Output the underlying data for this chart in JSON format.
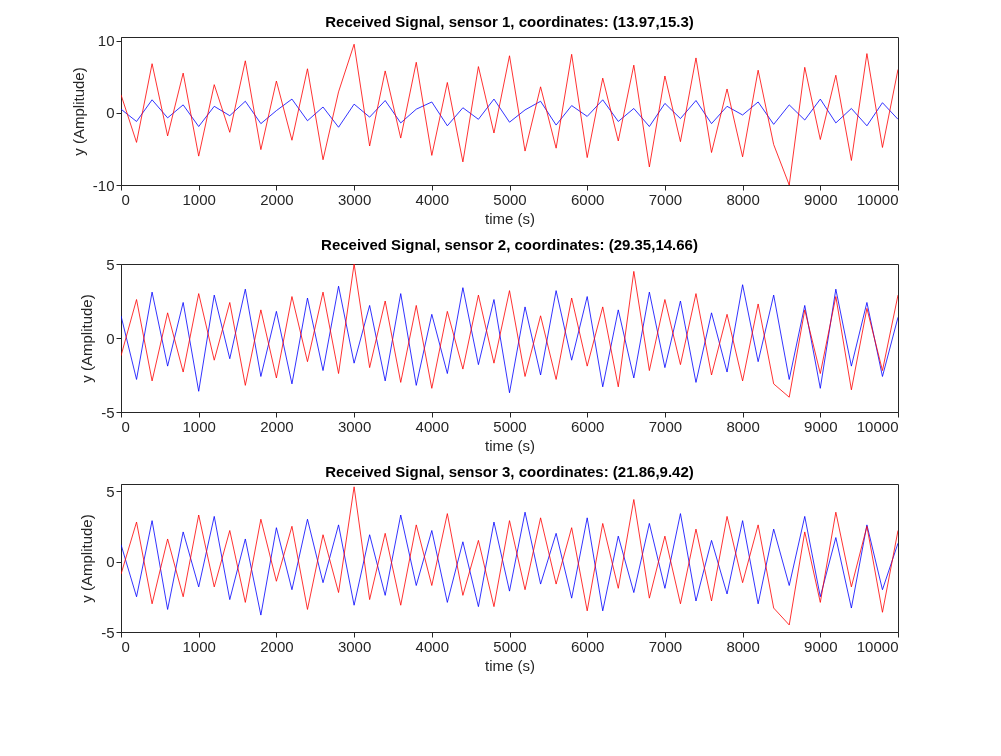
{
  "chart_data": [
    {
      "type": "line",
      "title": "Received Signal, sensor 1, coordinates: (13.97,15.3)",
      "xlabel": "time (s)",
      "ylabel": "y (Amplitude)",
      "x": [
        0,
        200,
        400,
        600,
        800,
        1000,
        1200,
        1400,
        1600,
        1800,
        2000,
        2200,
        2400,
        2600,
        2800,
        3000,
        3200,
        3400,
        3600,
        3800,
        4000,
        4200,
        4400,
        4600,
        4800,
        5000,
        5200,
        5400,
        5600,
        5800,
        6000,
        6200,
        6400,
        6600,
        6800,
        7000,
        7200,
        7400,
        7600,
        7800,
        8000,
        8200,
        8400,
        8600,
        8800,
        9000,
        9200,
        9400,
        9600,
        9800,
        10000
      ],
      "series": [
        {
          "color": "#0000ff",
          "values": [
            0.5,
            -1.2,
            1.8,
            -0.7,
            1.1,
            -1.9,
            0.9,
            -0.4,
            1.6,
            -1.5,
            0.3,
            1.9,
            -1.1,
            0.8,
            -2.0,
            1.2,
            -0.6,
            1.7,
            -1.4,
            0.5,
            1.5,
            -1.8,
            0.7,
            -0.9,
            1.9,
            -1.3,
            0.4,
            1.6,
            -1.7,
            1.0,
            -0.5,
            1.8,
            -1.2,
            0.6,
            -1.9,
            1.3,
            -0.8,
            1.7,
            -1.5,
            0.9,
            -0.3,
            1.5,
            -1.6,
            1.1,
            -1.0,
            1.9,
            -1.4,
            0.6,
            -1.8,
            1.4,
            -0.9
          ]
        },
        {
          "color": "#ff0000",
          "values": [
            2.5,
            -4.1,
            6.8,
            -3.2,
            5.5,
            -6.0,
            3.9,
            -2.7,
            7.2,
            -5.1,
            4.4,
            -3.8,
            6.1,
            -6.5,
            2.9,
            9.5,
            -4.6,
            5.8,
            -3.5,
            7.0,
            -5.9,
            4.2,
            -6.8,
            6.4,
            -2.8,
            7.9,
            -5.3,
            3.6,
            -4.9,
            8.1,
            -6.2,
            4.8,
            -3.9,
            6.6,
            -7.5,
            5.1,
            -4.0,
            7.6,
            -5.5,
            3.3,
            -6.1,
            5.9,
            -4.4,
            -10.0,
            6.3,
            -3.7,
            5.2,
            -6.6,
            8.2,
            -4.8,
            6.0
          ]
        }
      ],
      "xlim": [
        0,
        10000
      ],
      "xticks": [
        0,
        1000,
        2000,
        3000,
        4000,
        5000,
        6000,
        7000,
        8000,
        9000,
        10000
      ],
      "ylim": [
        -10,
        10.5
      ],
      "yticks": [
        -10,
        0,
        10
      ],
      "grid": false
    },
    {
      "type": "line",
      "title": "Received Signal, sensor 2, coordinates: (29.35,14.66)",
      "xlabel": "time (s)",
      "ylabel": "y (Amplitude)",
      "x": [
        0,
        200,
        400,
        600,
        800,
        1000,
        1200,
        1400,
        1600,
        1800,
        2000,
        2200,
        2400,
        2600,
        2800,
        3000,
        3200,
        3400,
        3600,
        3800,
        4000,
        4200,
        4400,
        4600,
        4800,
        5000,
        5200,
        5400,
        5600,
        5800,
        6000,
        6200,
        6400,
        6600,
        6800,
        7000,
        7200,
        7400,
        7600,
        7800,
        8000,
        8200,
        8400,
        8600,
        8800,
        9000,
        9200,
        9400,
        9600,
        9800,
        10000
      ],
      "series": [
        {
          "color": "#0000ff",
          "values": [
            1.5,
            -2.8,
            3.1,
            -1.9,
            2.4,
            -3.6,
            2.9,
            -1.4,
            3.3,
            -2.6,
            1.8,
            -3.1,
            2.7,
            -2.2,
            3.5,
            -1.7,
            2.2,
            -2.9,
            3.0,
            -3.2,
            1.6,
            -2.4,
            3.4,
            -1.8,
            2.6,
            -3.7,
            2.1,
            -2.5,
            3.2,
            -1.5,
            2.8,
            -3.3,
            1.9,
            -2.7,
            3.1,
            -2.0,
            2.5,
            -3.0,
            1.7,
            -2.3,
            3.6,
            -1.6,
            2.9,
            -2.8,
            2.2,
            -3.4,
            3.3,
            -1.9,
            2.4,
            -2.6,
            1.4
          ]
        },
        {
          "color": "#ff0000",
          "values": [
            -1.2,
            2.6,
            -2.9,
            1.7,
            -2.3,
            3.0,
            -1.5,
            2.4,
            -3.2,
            1.9,
            -2.7,
            2.8,
            -1.6,
            3.1,
            -2.4,
            5.0,
            -2.0,
            2.5,
            -3.0,
            2.2,
            -3.4,
            1.8,
            -2.1,
            2.9,
            -1.7,
            3.2,
            -2.6,
            1.5,
            -2.8,
            2.7,
            -1.9,
            2.1,
            -3.3,
            4.5,
            -2.2,
            2.6,
            -1.8,
            3.0,
            -2.5,
            1.6,
            -2.9,
            2.3,
            -3.1,
            -4.0,
            1.9,
            -2.4,
            2.8,
            -3.5,
            2.0,
            -2.2,
            2.9
          ]
        }
      ],
      "xlim": [
        0,
        10000
      ],
      "xticks": [
        0,
        1000,
        2000,
        3000,
        4000,
        5000,
        6000,
        7000,
        8000,
        9000,
        10000
      ],
      "ylim": [
        -5,
        5
      ],
      "yticks": [
        -5,
        0,
        5
      ],
      "grid": false
    },
    {
      "type": "line",
      "title": "Received Signal, sensor 3, coordinates: (21.86,9.42)",
      "xlabel": "time (s)",
      "ylabel": "y (Amplitude)",
      "x": [
        0,
        200,
        400,
        600,
        800,
        1000,
        1200,
        1400,
        1600,
        1800,
        2000,
        2200,
        2400,
        2600,
        2800,
        3000,
        3200,
        3400,
        3600,
        3800,
        4000,
        4200,
        4400,
        4600,
        4800,
        5000,
        5200,
        5400,
        5600,
        5800,
        6000,
        6200,
        6400,
        6600,
        6800,
        7000,
        7200,
        7400,
        7600,
        7800,
        8000,
        8200,
        8400,
        8600,
        8800,
        9000,
        9200,
        9400,
        9600,
        9800,
        10000
      ],
      "series": [
        {
          "color": "#0000ff",
          "values": [
            1.2,
            -2.5,
            2.9,
            -3.4,
            2.1,
            -1.8,
            3.2,
            -2.7,
            1.6,
            -3.8,
            2.4,
            -2.0,
            3.0,
            -1.5,
            2.6,
            -3.1,
            1.9,
            -2.4,
            3.3,
            -1.7,
            2.2,
            -2.9,
            1.4,
            -3.2,
            2.8,
            -2.1,
            3.5,
            -1.6,
            2.0,
            -2.6,
            3.1,
            -3.5,
            1.8,
            -2.2,
            2.7,
            -1.9,
            3.4,
            -2.8,
            1.5,
            -2.3,
            2.9,
            -3.0,
            2.3,
            -1.7,
            3.2,
            -2.5,
            1.7,
            -3.3,
            2.6,
            -2.0,
            1.3
          ]
        },
        {
          "color": "#ff0000",
          "values": [
            -0.9,
            2.8,
            -3.0,
            1.6,
            -2.5,
            3.3,
            -1.8,
            2.2,
            -2.9,
            3.0,
            -1.4,
            2.5,
            -3.4,
            1.9,
            -2.2,
            5.3,
            -2.7,
            2.0,
            -3.1,
            2.6,
            -1.7,
            3.4,
            -2.4,
            1.5,
            -3.2,
            2.9,
            -2.0,
            3.1,
            -1.6,
            2.4,
            -3.5,
            2.7,
            -1.9,
            4.4,
            -2.6,
            1.8,
            -3.0,
            2.3,
            -2.8,
            3.2,
            -1.5,
            2.6,
            -3.3,
            -4.5,
            2.1,
            -2.9,
            3.5,
            -1.8,
            2.5,
            -3.6,
            2.2
          ]
        }
      ],
      "xlim": [
        0,
        10000
      ],
      "xticks": [
        0,
        1000,
        2000,
        3000,
        4000,
        5000,
        6000,
        7000,
        8000,
        9000,
        10000
      ],
      "ylim": [
        -5,
        5.5
      ],
      "yticks": [
        -5,
        0,
        5
      ],
      "grid": false
    }
  ]
}
